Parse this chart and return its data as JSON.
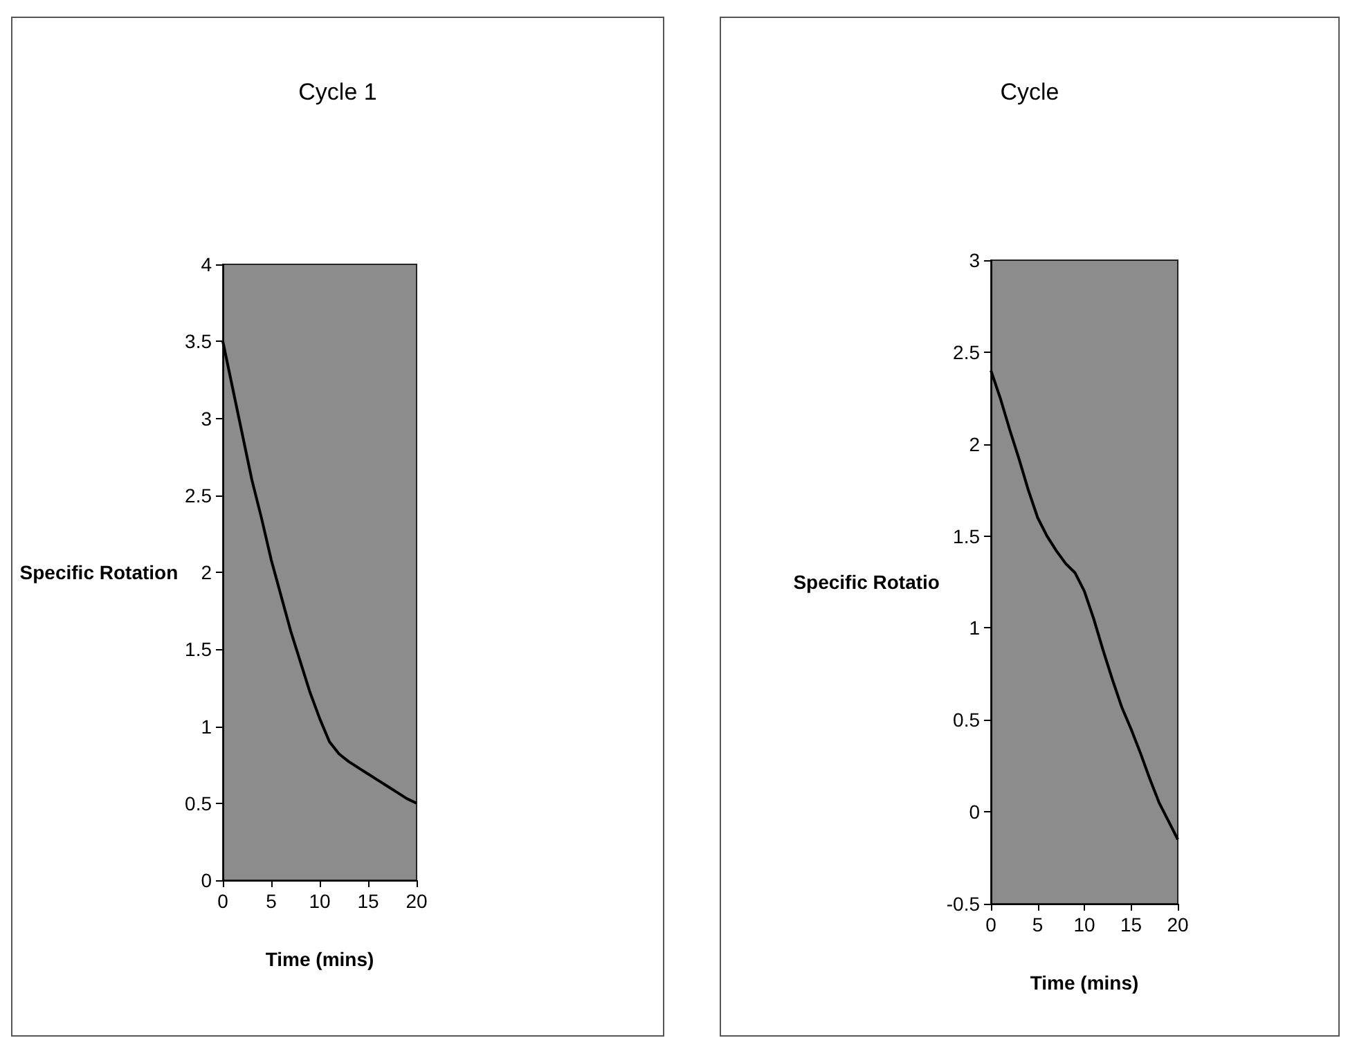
{
  "chart_data": [
    {
      "type": "line",
      "title": "Cycle 1",
      "xlabel": "Time (mins)",
      "ylabel": "Specific Rotation",
      "xlim": [
        0,
        20
      ],
      "xticks": [
        0,
        5,
        10,
        15,
        20
      ],
      "ylim": [
        0,
        4
      ],
      "yticks": [
        0,
        0.5,
        1,
        1.5,
        2,
        2.5,
        3,
        3.5,
        4
      ],
      "marker": "none",
      "line_style": "solid",
      "series": [
        {
          "color": "#000000",
          "x": [
            0,
            1,
            2,
            3,
            4,
            5,
            6,
            7,
            8,
            9,
            10,
            11,
            12,
            13,
            14,
            15,
            16,
            17,
            18,
            19,
            20
          ],
          "values": [
            3.5,
            3.2,
            2.9,
            2.6,
            2.35,
            2.08,
            1.85,
            1.62,
            1.42,
            1.22,
            1.05,
            0.9,
            0.82,
            0.77,
            0.73,
            0.69,
            0.65,
            0.61,
            0.57,
            0.53,
            0.5
          ]
        }
      ]
    },
    {
      "type": "line",
      "title": "Cycle",
      "xlabel": "Time (mins)",
      "ylabel": "Specific Rotatio",
      "xlim": [
        0,
        20
      ],
      "xticks": [
        0,
        5,
        10,
        15,
        20
      ],
      "ylim": [
        -0.5,
        3
      ],
      "yticks": [
        -0.5,
        0,
        0.5,
        1,
        1.5,
        2,
        2.5,
        3
      ],
      "marker": "none",
      "line_style": "solid",
      "series": [
        {
          "color": "#000000",
          "x": [
            0,
            1,
            2,
            3,
            4,
            5,
            6,
            7,
            8,
            9,
            10,
            11,
            12,
            13,
            14,
            15,
            16,
            17,
            18,
            19,
            20
          ],
          "values": [
            2.4,
            2.25,
            2.08,
            1.92,
            1.75,
            1.6,
            1.5,
            1.42,
            1.35,
            1.3,
            1.2,
            1.05,
            0.88,
            0.72,
            0.57,
            0.45,
            0.32,
            0.18,
            0.05,
            -0.05,
            -0.15
          ]
        }
      ]
    }
  ]
}
